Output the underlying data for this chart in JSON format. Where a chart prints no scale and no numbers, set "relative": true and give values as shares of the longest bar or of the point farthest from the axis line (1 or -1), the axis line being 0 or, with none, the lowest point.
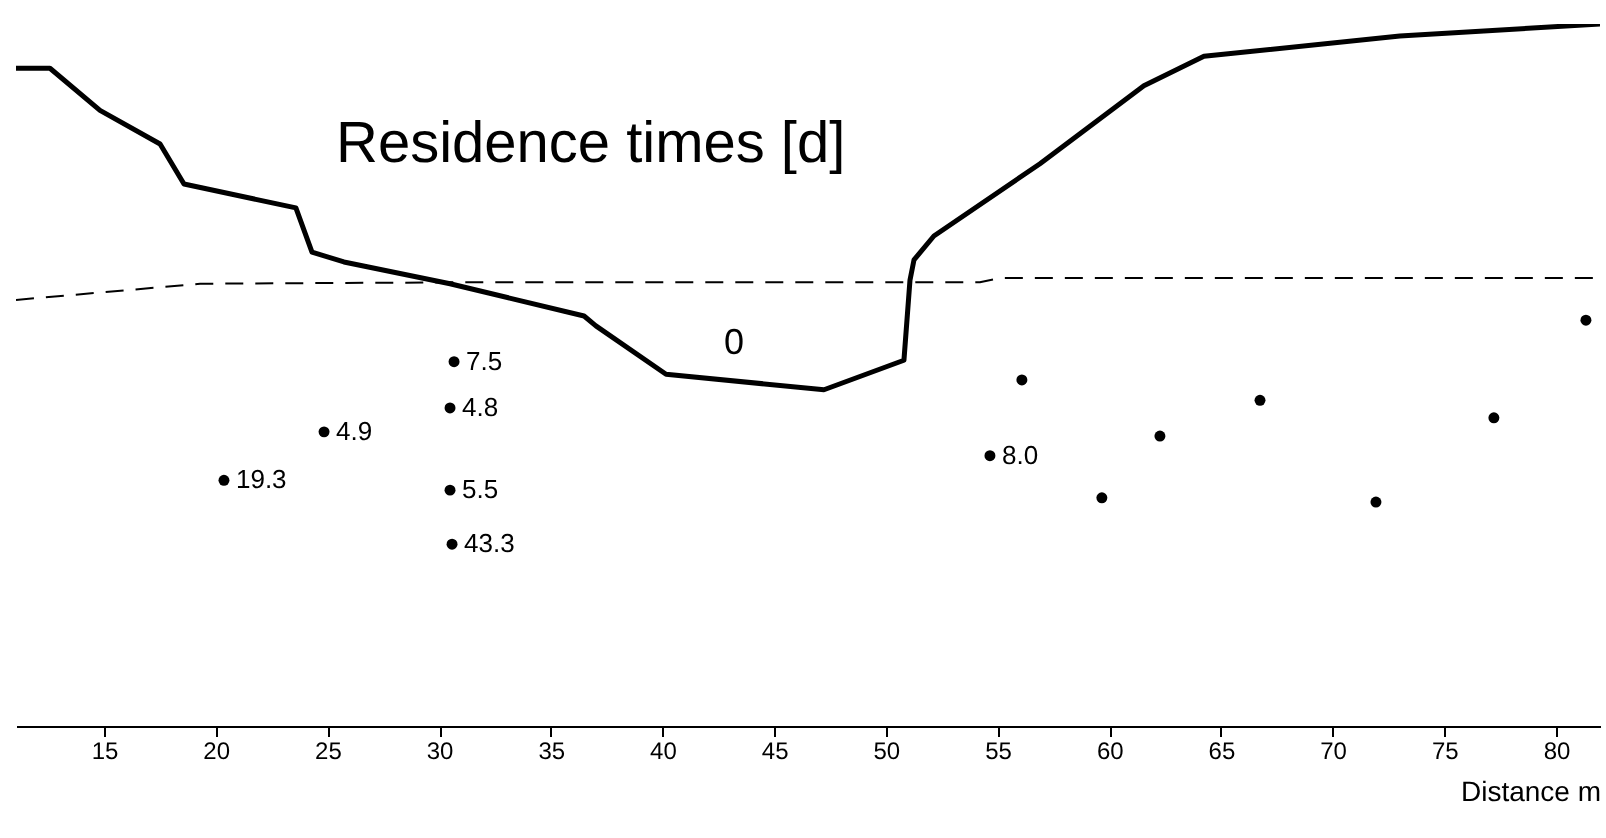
{
  "chart_data": {
    "type": "line",
    "title": "Residence times [d]",
    "xlabel": "Distance m",
    "relative": true,
    "xlim": [
      11.06,
      81.97
    ],
    "xticks": [
      15,
      20,
      25,
      30,
      35,
      40,
      45,
      50,
      55,
      60,
      65,
      70,
      75,
      80
    ],
    "grid": false,
    "series": [
      {
        "color": "#000000",
        "line_style": "solid",
        "x": [
          11.06,
          12.58,
          14.82,
          17.51,
          18.58,
          23.59,
          24.31,
          25.74,
          30.49,
          36.49,
          37.02,
          40.16,
          47.23,
          50.81,
          51.08,
          51.26,
          52.15,
          56.9,
          61.55,
          64.24,
          73.01,
          81.97
        ],
        "values": [
          0.937,
          0.937,
          0.877,
          0.829,
          0.772,
          0.738,
          0.675,
          0.661,
          0.63,
          0.584,
          0.57,
          0.501,
          0.479,
          0.521,
          0.635,
          0.664,
          0.698,
          0.801,
          0.912,
          0.954,
          0.983,
          1.0
        ]
      },
      {
        "color": "#000000",
        "line_style": "dashed",
        "x": [
          11.06,
          19.3,
          30.94,
          54.21,
          55.11,
          81.97
        ],
        "values": [
          0.607,
          0.63,
          0.632,
          0.632,
          0.638,
          0.638
        ]
      },
      {
        "type": "scatter",
        "color": "#000000",
        "marker": "circle",
        "x": [
          20.37,
          24.85,
          30.67,
          30.49,
          30.49,
          30.58,
          54.66,
          56.09,
          59.67,
          62.27,
          66.75,
          71.94,
          77.22,
          81.34
        ],
        "values": [
          0.35,
          0.419,
          0.519,
          0.453,
          0.336,
          0.259,
          0.385,
          0.493,
          0.325,
          0.413,
          0.464,
          0.319,
          0.439,
          0.578
        ]
      }
    ],
    "annotations": [
      "0",
      {
        "text": "19.3",
        "x": 20.37,
        "y": 0.35
      },
      {
        "text": "4.9",
        "x": 24.85,
        "y": 0.419
      },
      {
        "text": "7.5",
        "x": 30.67,
        "y": 0.519
      },
      {
        "text": "4.8",
        "x": 30.49,
        "y": 0.453
      },
      {
        "text": "5.5",
        "x": 30.49,
        "y": 0.336
      },
      {
        "text": "43.3",
        "x": 30.58,
        "y": 0.259
      },
      {
        "text": "8.0",
        "x": 54.66,
        "y": 0.385
      }
    ]
  }
}
